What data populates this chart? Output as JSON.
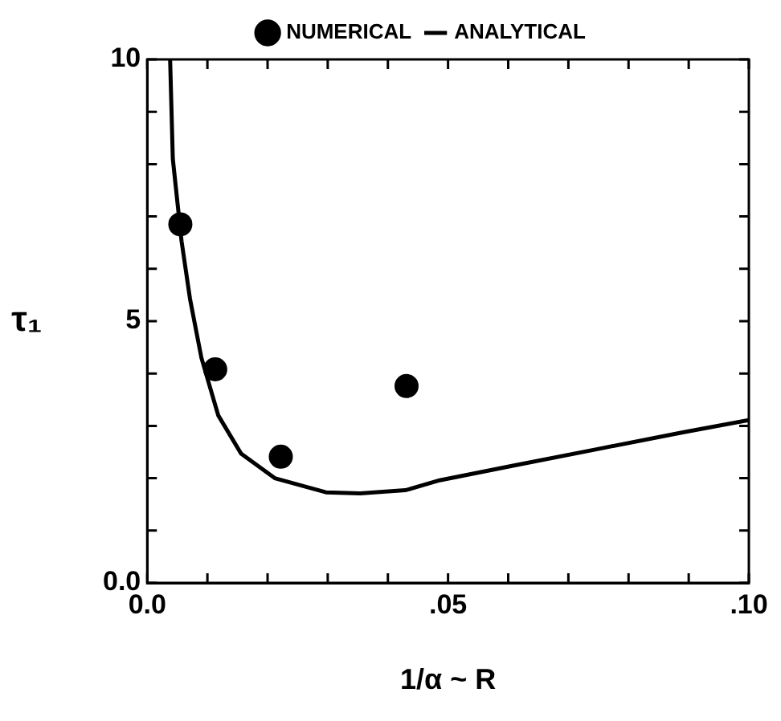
{
  "chart_data": {
    "type": "scatter",
    "xlabel": "1/α ~ R",
    "ylabel": "τ₁",
    "xlim": [
      0,
      0.1
    ],
    "ylim": [
      0,
      10
    ],
    "xticks": [
      {
        "value": 0,
        "label": "0.0"
      },
      {
        "value": 0.01,
        "label": null
      },
      {
        "value": 0.02,
        "label": null
      },
      {
        "value": 0.03,
        "label": null
      },
      {
        "value": 0.04,
        "label": null
      },
      {
        "value": 0.05,
        "label": ".05"
      },
      {
        "value": 0.06,
        "label": null
      },
      {
        "value": 0.07,
        "label": null
      },
      {
        "value": 0.08,
        "label": null
      },
      {
        "value": 0.09,
        "label": null
      },
      {
        "value": 0.1,
        "label": ".10"
      }
    ],
    "yticks": [
      {
        "value": 0,
        "label": "0.0"
      },
      {
        "value": 1,
        "label": null
      },
      {
        "value": 2,
        "label": null
      },
      {
        "value": 3,
        "label": null
      },
      {
        "value": 4,
        "label": null
      },
      {
        "value": 5,
        "label": "5"
      },
      {
        "value": 6,
        "label": null
      },
      {
        "value": 7,
        "label": null
      },
      {
        "value": 8,
        "label": null
      },
      {
        "value": 9,
        "label": null
      },
      {
        "value": 10,
        "label": "10"
      }
    ],
    "grid": false,
    "legend": "top",
    "series": [
      {
        "name": "NUMERICAL",
        "color": "#000000",
        "marker": "circle",
        "x": [
          0.0055,
          0.0113,
          0.0222,
          0.0431
        ],
        "values": [
          6.85,
          4.08,
          2.41,
          3.76
        ]
      },
      {
        "name": "ANALYTICAL",
        "type": "line",
        "color": "#000000",
        "marker": "none",
        "line_style": "solid",
        "x": [
          0.0038,
          0.00425,
          0.0057,
          0.0071,
          0.009,
          0.0118,
          0.0156,
          0.0212,
          0.0297,
          0.0354,
          0.0429,
          0.0486,
          0.0608,
          0.075,
          0.0892,
          0.1
        ],
        "values": [
          10,
          8.1,
          6.53,
          5.43,
          4.3,
          3.2,
          2.47,
          2.0,
          1.73,
          1.71,
          1.77,
          1.96,
          2.24,
          2.56,
          2.88,
          3.11
        ]
      }
    ]
  }
}
